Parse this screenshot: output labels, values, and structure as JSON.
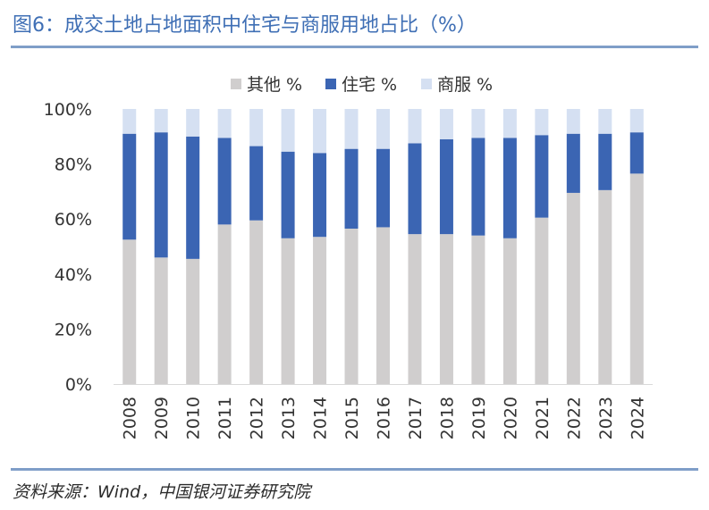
{
  "title": "图6：成交土地占地面积中住宅与商服用地占比（%）",
  "source": "资料来源：Wind，中国银河证券研究院",
  "chart_data": {
    "type": "bar",
    "stacked": true,
    "categories": [
      "2008",
      "2009",
      "2010",
      "2011",
      "2012",
      "2013",
      "2014",
      "2015",
      "2016",
      "2017",
      "2018",
      "2019",
      "2020",
      "2021",
      "2022",
      "2023",
      "2024"
    ],
    "series": [
      {
        "name": "其他 %",
        "color": "#d0cece",
        "values": [
          52.5,
          46,
          45.5,
          58,
          59.5,
          53,
          53.5,
          56.5,
          57,
          54.5,
          54.5,
          54,
          53,
          60.5,
          69.5,
          70.5,
          76.5
        ]
      },
      {
        "name": "住宅 %",
        "color": "#3b65b3",
        "values": [
          38.5,
          45.5,
          44.5,
          31.5,
          27,
          31.5,
          30.5,
          29,
          28.5,
          33,
          34.5,
          35.5,
          36.5,
          30,
          21.5,
          20.5,
          15
        ]
      },
      {
        "name": "商服 %",
        "color": "#d5e0f2",
        "values": [
          9,
          8.5,
          10,
          10.5,
          13.5,
          15.5,
          16,
          14.5,
          14.5,
          12.5,
          11,
          10.5,
          10.5,
          9.5,
          9,
          9,
          8.5
        ]
      }
    ],
    "yticks": [
      "0%",
      "20%",
      "40%",
      "60%",
      "80%",
      "100%"
    ],
    "ylim": [
      0,
      100
    ],
    "legend": "top-center",
    "grid": false
  }
}
